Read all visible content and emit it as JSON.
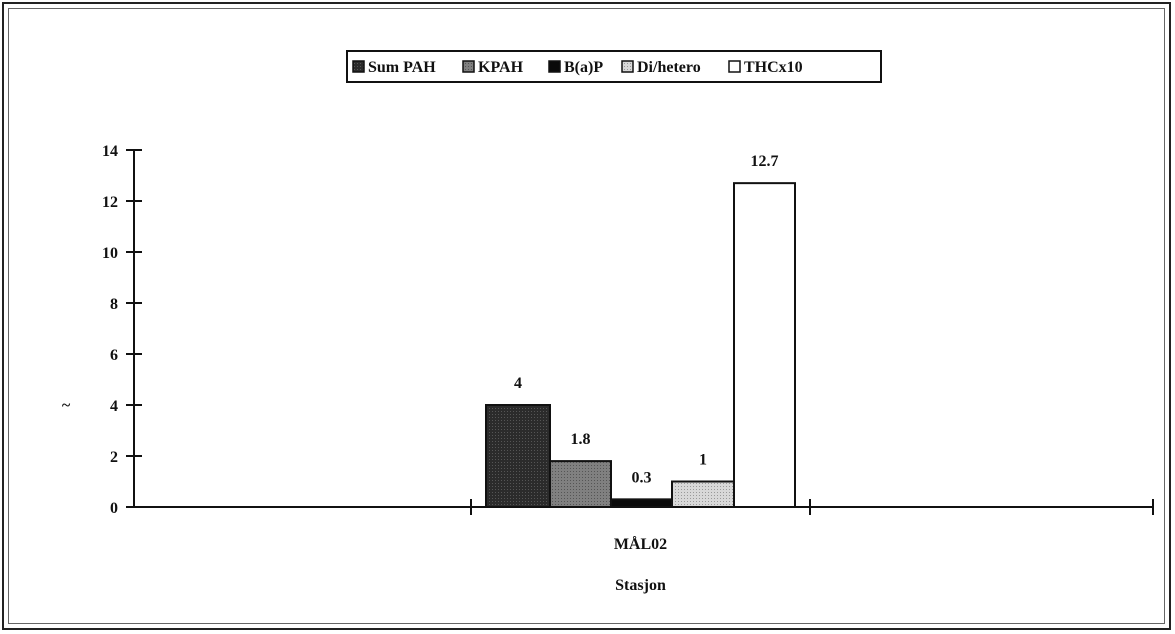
{
  "chart_data": {
    "type": "bar",
    "categories": [
      "MÅL02"
    ],
    "series": [
      {
        "name": "Sum PAH",
        "values": [
          4
        ],
        "color": "#2b2b2b",
        "label": "4"
      },
      {
        "name": "KPAH",
        "values": [
          1.8
        ],
        "color": "#808080",
        "label": "1.8"
      },
      {
        "name": "B(a)P",
        "values": [
          0.3
        ],
        "color": "#0a0a0a",
        "label": "0.3"
      },
      {
        "name": "Di/hetero",
        "values": [
          1
        ],
        "color": "#d8d8d8",
        "label": "1"
      },
      {
        "name": "THCx10",
        "values": [
          12.7
        ],
        "color": "#ffffff",
        "label": "12.7"
      }
    ],
    "xlabel": "Stasjon",
    "ylabel": "~",
    "ylim": [
      0,
      14
    ],
    "yticks": [
      "0",
      "2",
      "4",
      "6",
      "8",
      "10",
      "12",
      "14"
    ],
    "grid": false,
    "legend_position": "top-center"
  }
}
